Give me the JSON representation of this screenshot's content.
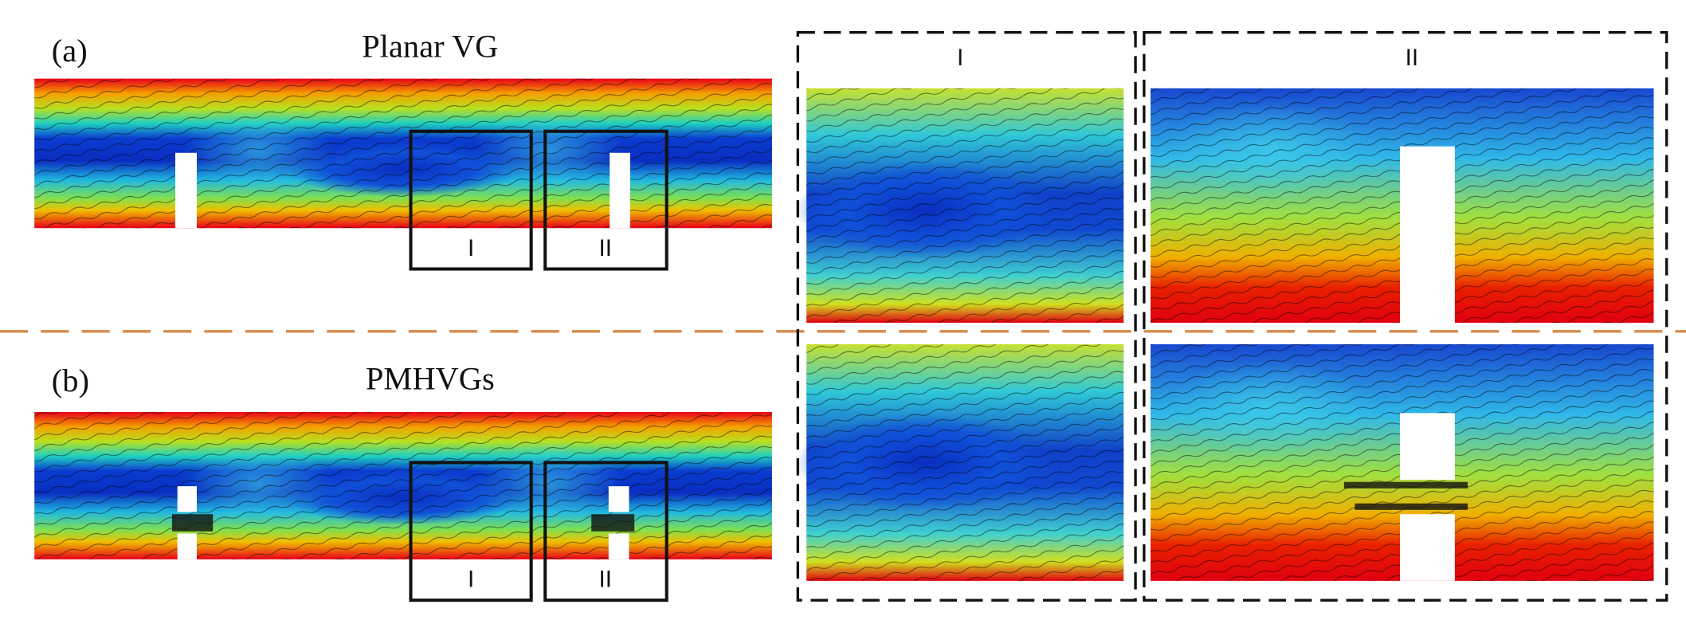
{
  "panels": [
    {
      "label": "(a)",
      "title": "Planar VG",
      "boxes": [
        "I",
        "II"
      ]
    },
    {
      "label": "(b)",
      "title": "PMHVGs",
      "boxes": [
        "I",
        "II"
      ]
    }
  ],
  "zoom_headers": [
    "I",
    "II"
  ]
}
